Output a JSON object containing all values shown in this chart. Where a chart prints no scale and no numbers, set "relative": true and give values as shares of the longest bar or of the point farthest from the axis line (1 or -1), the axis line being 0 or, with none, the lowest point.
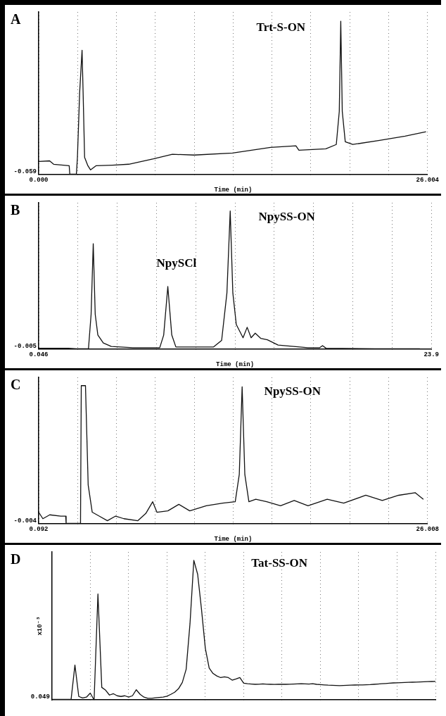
{
  "chart_data": [
    {
      "type": "line",
      "title": "A",
      "xlabel": "Time (min)",
      "relative": true,
      "grid": "x",
      "legend": false,
      "marker": "none",
      "line_style": "solid",
      "xlim": [
        0,
        26.004
      ],
      "xticks": [
        {
          "value": 0,
          "label": "0.000"
        },
        {
          "value": 2.6,
          "label": null
        },
        {
          "value": 5.2,
          "label": null
        },
        {
          "value": 7.8,
          "label": null
        },
        {
          "value": 10.4,
          "label": null
        },
        {
          "value": 13.0,
          "label": null
        },
        {
          "value": 15.6,
          "label": null
        },
        {
          "value": 18.2,
          "label": null
        },
        {
          "value": 20.8,
          "label": null
        },
        {
          "value": 23.4,
          "label": null
        },
        26.004
      ],
      "annotations": [
        "-0.059",
        "Trt-S-ON"
      ],
      "series": [
        {
          "color": "#111111",
          "x": [
            0,
            0.73,
            1.0,
            2.04,
            2.08,
            2.52,
            2.59,
            2.74,
            2.9,
            2.97,
            3.07,
            3.29,
            3.47,
            3.83,
            4.93,
            6.02,
            7.67,
            8.94,
            10.4,
            12.96,
            15.5,
            17.2,
            17.4,
            19.2,
            19.9,
            20.1,
            20.2,
            20.3,
            20.5,
            21.0,
            22.8,
            24.5,
            25.9
          ],
          "values": [
            0.083,
            0.087,
            0.065,
            0.055,
            0,
            0,
            0.11,
            0.535,
            0.81,
            0.535,
            0.11,
            0.055,
            0.028,
            0.055,
            0.059,
            0.065,
            0.1,
            0.13,
            0.125,
            0.138,
            0.175,
            0.185,
            0.157,
            0.166,
            0.194,
            0.41,
            1.0,
            0.41,
            0.212,
            0.194,
            0.221,
            0.249,
            0.277
          ]
        }
      ]
    },
    {
      "type": "line",
      "title": "B",
      "xlabel": "Time (min)",
      "relative": true,
      "grid": "x",
      "legend": false,
      "marker": "none",
      "line_style": "solid",
      "xlim": [
        0.046,
        23.9
      ],
      "xticks": [
        0.046,
        {
          "value": 2.43,
          "label": null
        },
        {
          "value": 4.82,
          "label": null
        },
        {
          "value": 7.2,
          "label": null
        },
        {
          "value": 9.59,
          "label": null
        },
        {
          "value": 11.97,
          "label": null
        },
        {
          "value": 14.36,
          "label": null
        },
        {
          "value": 16.74,
          "label": null
        },
        {
          "value": 19.13,
          "label": null
        },
        {
          "value": 21.51,
          "label": null
        },
        {
          "value": 23.9,
          "label": "23.9"
        }
      ],
      "annotations": [
        "-0.005",
        "NpySCl",
        "NpySS-ON"
      ],
      "series": [
        {
          "color": "#111111",
          "x": [
            0.05,
            1.84,
            2.33,
            3.07,
            3.23,
            3.36,
            3.48,
            3.64,
            3.97,
            4.46,
            5.77,
            7.4,
            7.64,
            7.89,
            8.13,
            8.38,
            10.67,
            11.16,
            11.48,
            11.68,
            11.84,
            12.05,
            12.46,
            12.71,
            12.95,
            13.2,
            13.53,
            13.94,
            14.59,
            16.39,
            17.12,
            17.29,
            17.5,
            20.47,
            23.2
          ],
          "values": [
            0.004,
            0.004,
            0,
            0,
            0.25,
            0.763,
            0.25,
            0.1,
            0.042,
            0.017,
            0.008,
            0.008,
            0.1,
            0.452,
            0.1,
            0.013,
            0.013,
            0.061,
            0.405,
            1.0,
            0.405,
            0.176,
            0.08,
            0.156,
            0.08,
            0.113,
            0.076,
            0.065,
            0.027,
            0.008,
            0.008,
            0.023,
            0.004,
            0,
            0
          ]
        }
      ]
    },
    {
      "type": "line",
      "title": "C",
      "xlabel": "Time (min)",
      "relative": true,
      "grid": "x",
      "legend": false,
      "marker": "none",
      "line_style": "solid",
      "xlim": [
        0.092,
        26.008
      ],
      "xticks": [
        0.092,
        {
          "value": 2.68,
          "label": null
        },
        {
          "value": 5.27,
          "label": null
        },
        {
          "value": 7.87,
          "label": null
        },
        {
          "value": 10.46,
          "label": null
        },
        {
          "value": 13.05,
          "label": null
        },
        {
          "value": 15.64,
          "label": null
        },
        {
          "value": 18.23,
          "label": null
        },
        {
          "value": 20.82,
          "label": null
        },
        {
          "value": 23.42,
          "label": null
        },
        26.008
      ],
      "annotations": [
        "-0.004",
        "NpySS-ON"
      ],
      "series": [
        {
          "color": "#111111",
          "x": [
            0.092,
            0.37,
            0.83,
            1.56,
            1.89,
            1.92,
            2.88,
            2.93,
            3.21,
            3.39,
            3.66,
            4.12,
            4.67,
            5.22,
            5.77,
            6.69,
            7.23,
            7.69,
            7.97,
            8.7,
            9.43,
            10.16,
            11.26,
            12.36,
            13.19,
            13.46,
            13.65,
            13.83,
            14.1,
            14.56,
            15.29,
            16.21,
            17.12,
            18.04,
            19.32,
            20.42,
            21.89,
            22.99,
            24.08,
            25.18,
            25.73
          ],
          "values": [
            0.081,
            0.034,
            0.062,
            0.053,
            0.053,
            0,
            0,
            1.0,
            1.0,
            0.279,
            0.081,
            0.053,
            0.019,
            0.053,
            0.034,
            0.019,
            0.072,
            0.157,
            0.081,
            0.091,
            0.138,
            0.091,
            0.128,
            0.147,
            0.157,
            0.355,
            0.992,
            0.355,
            0.157,
            0.175,
            0.157,
            0.128,
            0.166,
            0.128,
            0.175,
            0.147,
            0.204,
            0.166,
            0.204,
            0.223,
            0.175
          ]
        }
      ]
    },
    {
      "type": "line",
      "title": "D",
      "ylabel": "x10⁻³",
      "relative": true,
      "grid": "x",
      "legend": false,
      "marker": "none",
      "line_style": "solid",
      "categories": [
        null,
        null,
        null,
        null,
        null,
        null,
        null,
        null,
        null,
        null,
        null,
        null,
        null,
        null,
        null,
        null,
        null,
        null,
        null,
        null,
        null,
        null,
        null,
        null,
        null,
        null,
        null,
        null,
        null,
        null,
        null,
        null,
        null,
        null,
        null,
        null,
        null,
        null,
        null,
        null,
        null,
        null,
        null,
        null,
        null,
        null,
        null,
        null,
        null,
        null,
        null,
        null,
        null,
        null,
        null,
        null,
        null,
        null,
        null,
        null,
        null,
        null,
        null,
        null,
        null,
        null,
        null,
        null,
        null,
        null,
        null,
        null,
        null,
        null,
        null,
        null,
        null,
        null,
        null,
        null,
        null,
        null,
        null,
        null,
        null,
        null,
        null,
        null,
        null,
        null,
        null,
        null,
        null,
        null,
        null,
        null,
        null,
        null,
        null,
        null,
        null
      ],
      "annotations": [
        "0.049",
        "Tat-SS-ON"
      ],
      "series": [
        {
          "color": "#111111",
          "values": [
            0.004,
            0.004,
            0.004,
            0.004,
            0.004,
            0.004,
            0.25,
            0.025,
            0.014,
            0.02,
            0.049,
            0,
            0.759,
            0.09,
            0.07,
            0.035,
            0.045,
            0.03,
            0.025,
            0.03,
            0.02,
            0.03,
            0.073,
            0.04,
            0.02,
            0.012,
            0.012,
            0.015,
            0.018,
            0.021,
            0.027,
            0.04,
            0.055,
            0.08,
            0.125,
            0.22,
            0.546,
            1.0,
            0.9,
            0.65,
            0.37,
            0.228,
            0.19,
            0.172,
            0.16,
            0.165,
            0.16,
            0.142,
            0.15,
            0.16,
            0.12,
            0.116,
            0.114,
            0.112,
            0.113,
            0.115,
            0.113,
            0.112,
            0.111,
            0.112,
            0.113,
            0.112,
            0.113,
            0.114,
            0.115,
            0.116,
            0.115,
            0.114,
            0.116,
            0.112,
            0.11,
            0.108,
            0.106,
            0.105,
            0.104,
            0.103,
            0.104,
            0.105,
            0.106,
            0.107,
            0.108,
            0.108,
            0.109,
            0.11,
            0.112,
            0.114,
            0.116,
            0.118,
            0.12,
            0.122,
            0.123,
            0.124,
            0.125,
            0.126,
            0.127,
            0.128,
            0.129,
            0.13,
            0.131,
            0.132,
            0.133
          ]
        }
      ]
    }
  ]
}
